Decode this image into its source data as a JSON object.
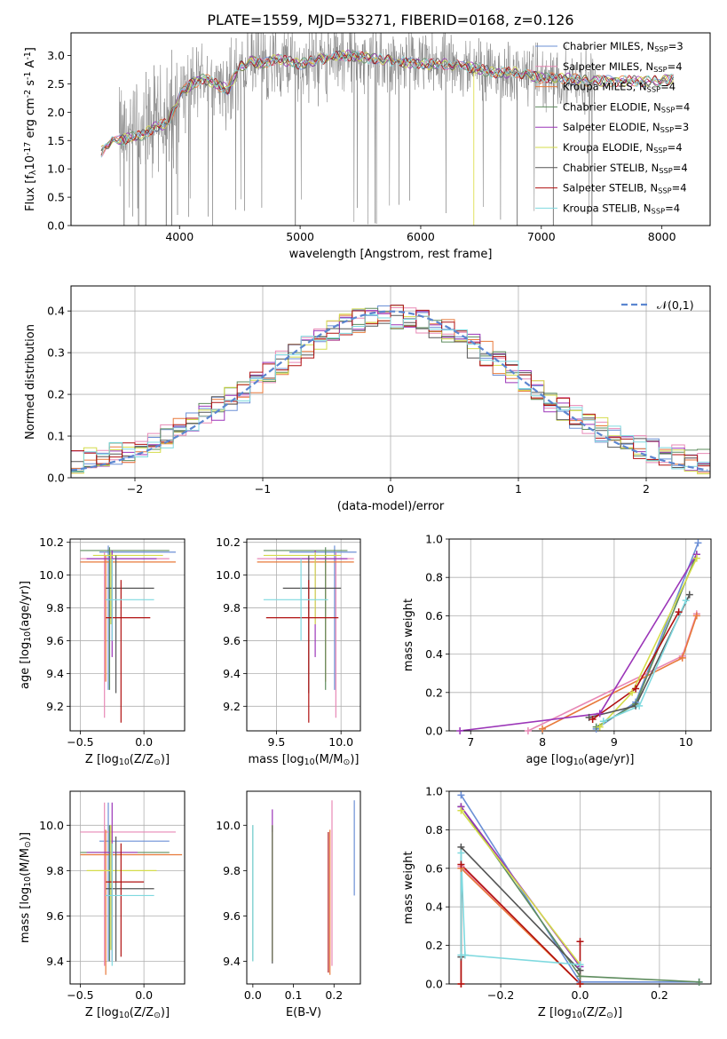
{
  "figure": {
    "title": "PLATE=1559, MJD=53271, FIBERID=0168, z=0.126"
  },
  "legend": [
    {
      "label": "Chabrier MILES, N$_{SSP}$=3",
      "color": "#6b8fd6"
    },
    {
      "label": "Salpeter MILES, N$_{SSP}$=4",
      "color": "#e889b6"
    },
    {
      "label": "Kroupa MILES, N$_{SSP}$=4",
      "color": "#e8793a"
    },
    {
      "label": "Chabrier ELODIE, N$_{SSP}$=4",
      "color": "#5e8c5e"
    },
    {
      "label": "Salpeter ELODIE, N$_{SSP}$=3",
      "color": "#9b35b8"
    },
    {
      "label": "Kroupa ELODIE, N$_{SSP}$=4",
      "color": "#d4dc4a"
    },
    {
      "label": "Chabrier STELIB, N$_{SSP}$=4",
      "color": "#555555"
    },
    {
      "label": "Salpeter STELIB, N$_{SSP}$=4",
      "color": "#b01010"
    },
    {
      "label": "Kroupa STELIB, N$_{SSP}$=4",
      "color": "#7fd9df"
    }
  ],
  "chart_data": [
    {
      "id": "spectrum",
      "type": "line",
      "xlabel": "wavelength [Angstrom, rest frame]",
      "ylabel": "Flux [f$_\\lambda$10$^{-17}$ erg cm$^{-2}$ s$^{-1}$ A$^{-1}$]",
      "xlim": [
        3100,
        8400
      ],
      "ylim": [
        0,
        3.4
      ],
      "xticks": [
        4000,
        5000,
        6000,
        7000,
        8000
      ],
      "yticks": [
        0.0,
        0.5,
        1.0,
        1.5,
        2.0,
        2.5,
        3.0
      ],
      "grid": false,
      "legend_position": "top-right",
      "data_color": "#808080",
      "model_x": [
        3350,
        3400,
        3500,
        3600,
        3700,
        3800,
        3900,
        4000,
        4100,
        4200,
        4300,
        4400,
        4500,
        4600,
        4700,
        4800,
        4900,
        5000,
        5200,
        5400,
        5600,
        5800,
        6000,
        6200,
        6400,
        6600,
        6800,
        7000,
        7200,
        7400,
        7600,
        7800,
        8000,
        8100
      ],
      "model_y": [
        1.3,
        1.45,
        1.5,
        1.55,
        1.6,
        1.75,
        1.8,
        2.3,
        2.5,
        2.6,
        2.5,
        2.4,
        2.8,
        2.9,
        2.85,
        2.95,
        2.9,
        2.85,
        2.95,
        3.0,
        2.95,
        2.9,
        2.85,
        2.85,
        2.8,
        2.7,
        2.7,
        2.6,
        2.6,
        2.55,
        2.55,
        2.55,
        2.55,
        2.6
      ]
    },
    {
      "id": "residuals",
      "type": "histogram",
      "xlabel": "(data-model)/error",
      "ylabel": "Normed distribution",
      "xlim": [
        -2.5,
        2.5
      ],
      "ylim": [
        0,
        0.46
      ],
      "xticks": [
        -2,
        -1,
        0,
        1,
        2
      ],
      "yticks": [
        0.0,
        0.1,
        0.2,
        0.3,
        0.4
      ],
      "grid": true,
      "legend_position": "top-right",
      "curve_label": "$\\mathcal{N}(0,1)$",
      "curve_color": "#5b86d0",
      "bin_width": 0.1
    },
    {
      "id": "age-vs-Z",
      "type": "scatter",
      "xlabel": "Z [log$_{10}$(Z/Z$_\\odot$)]",
      "ylabel": "age  [log$_{10}$(age/yr)]",
      "xlim": [
        -0.58,
        0.32
      ],
      "ylim": [
        9.05,
        10.22
      ],
      "xticks": [
        -0.5,
        0.0
      ],
      "yticks": [
        9.2,
        9.4,
        9.6,
        9.8,
        10.0,
        10.2
      ],
      "grid": true,
      "points": [
        {
          "c": 0,
          "x": -0.28,
          "xe": [
            -0.35,
            0.25
          ],
          "y": 10.14,
          "ye": [
            9.3,
            10.18
          ]
        },
        {
          "c": 1,
          "x": -0.31,
          "xe": [
            -0.5,
            0.2
          ],
          "y": 10.1,
          "ye": [
            9.13,
            10.14
          ]
        },
        {
          "c": 2,
          "x": -0.3,
          "xe": [
            -0.5,
            0.25
          ],
          "y": 10.08,
          "ye": [
            9.35,
            10.12
          ]
        },
        {
          "c": 3,
          "x": -0.27,
          "xe": [
            -0.5,
            0.2
          ],
          "y": 10.15,
          "ye": [
            9.3,
            10.17
          ]
        },
        {
          "c": 4,
          "x": -0.25,
          "xe": [
            -0.45,
            0.1
          ],
          "y": 10.1,
          "ye": [
            9.5,
            10.15
          ]
        },
        {
          "c": 5,
          "x": -0.26,
          "xe": [
            -0.4,
            0.15
          ],
          "y": 10.12,
          "ye": [
            9.7,
            10.14
          ]
        },
        {
          "c": 6,
          "x": -0.22,
          "xe": [
            -0.3,
            0.08
          ],
          "y": 9.92,
          "ye": [
            9.28,
            10.12
          ]
        },
        {
          "c": 7,
          "x": -0.18,
          "xe": [
            -0.3,
            0.05
          ],
          "y": 9.74,
          "ye": [
            9.1,
            9.97
          ]
        },
        {
          "c": 8,
          "x": -0.25,
          "xe": [
            -0.3,
            0.08
          ],
          "y": 9.85,
          "ye": [
            9.6,
            10.1
          ]
        }
      ]
    },
    {
      "id": "age-vs-mass",
      "type": "scatter",
      "xlabel": "mass [log$_{10}$(M/M$_\\odot$)]",
      "ylabel": "",
      "xlim": [
        9.27,
        10.15
      ],
      "ylim": [
        9.05,
        10.22
      ],
      "xticks": [
        9.5,
        10.0
      ],
      "yticks": [
        9.2,
        9.4,
        9.6,
        9.8,
        10.0,
        10.2
      ],
      "grid": true,
      "points": [
        {
          "c": 0,
          "x": 9.95,
          "xe": [
            9.6,
            10.12
          ],
          "y": 10.14,
          "ye": [
            9.3,
            10.18
          ]
        },
        {
          "c": 1,
          "x": 9.96,
          "xe": [
            9.35,
            10.1
          ],
          "y": 10.1,
          "ye": [
            9.13,
            10.14
          ]
        },
        {
          "c": 2,
          "x": 9.88,
          "xe": [
            9.35,
            10.1
          ],
          "y": 10.08,
          "ye": [
            9.35,
            10.12
          ]
        },
        {
          "c": 3,
          "x": 9.88,
          "xe": [
            9.4,
            10.05
          ],
          "y": 10.15,
          "ye": [
            9.3,
            10.17
          ]
        },
        {
          "c": 4,
          "x": 9.8,
          "xe": [
            9.5,
            10.05
          ],
          "y": 10.1,
          "ye": [
            9.5,
            10.15
          ]
        },
        {
          "c": 5,
          "x": 9.8,
          "xe": [
            9.4,
            10.0
          ],
          "y": 10.12,
          "ye": [
            9.7,
            10.14
          ]
        },
        {
          "c": 6,
          "x": 9.75,
          "xe": [
            9.55,
            10.0
          ],
          "y": 9.92,
          "ye": [
            9.28,
            10.12
          ]
        },
        {
          "c": 7,
          "x": 9.75,
          "xe": [
            9.42,
            9.98
          ],
          "y": 9.74,
          "ye": [
            9.1,
            9.97
          ]
        },
        {
          "c": 8,
          "x": 9.69,
          "xe": [
            9.4,
            9.9
          ],
          "y": 9.85,
          "ye": [
            9.6,
            10.1
          ]
        }
      ]
    },
    {
      "id": "mass-weight-vs-age",
      "type": "line",
      "xlabel": "age  [log$_{10}$(age/yr)]",
      "ylabel": "mass weight",
      "xlim": [
        6.7,
        10.35
      ],
      "ylim": [
        0,
        1.0
      ],
      "xticks": [
        7,
        8,
        9,
        10
      ],
      "yticks": [
        0.0,
        0.2,
        0.4,
        0.6,
        0.8,
        1.0
      ],
      "grid": true,
      "series": [
        {
          "c": 0,
          "x": [
            8.75,
            9.3,
            10.17
          ],
          "y": [
            0.01,
            0.15,
            0.98
          ]
        },
        {
          "c": 1,
          "x": [
            7.8,
            9.95,
            10.15
          ],
          "y": [
            0.0,
            0.39,
            0.61
          ]
        },
        {
          "c": 2,
          "x": [
            8.0,
            9.95,
            10.15
          ],
          "y": [
            0.01,
            0.38,
            0.6
          ]
        },
        {
          "c": 3,
          "x": [
            8.75,
            9.3,
            10.15
          ],
          "y": [
            0.02,
            0.14,
            0.92
          ]
        },
        {
          "c": 4,
          "x": [
            6.85,
            8.8,
            10.15
          ],
          "y": [
            0.0,
            0.09,
            0.92
          ]
        },
        {
          "c": 5,
          "x": [
            8.8,
            9.25,
            10.15
          ],
          "y": [
            0.02,
            0.2,
            0.9
          ]
        },
        {
          "c": 6,
          "x": [
            8.65,
            9.3,
            10.05
          ],
          "y": [
            0.07,
            0.13,
            0.71
          ]
        },
        {
          "c": 7,
          "x": [
            8.7,
            9.3,
            9.9
          ],
          "y": [
            0.06,
            0.22,
            0.62
          ]
        },
        {
          "c": 8,
          "x": [
            8.85,
            9.35,
            10.0
          ],
          "y": [
            0.05,
            0.13,
            0.68
          ]
        }
      ]
    },
    {
      "id": "mass-vs-Z",
      "type": "scatter",
      "xlabel": "Z [log$_{10}$(Z/Z$_\\odot$)]",
      "ylabel": "mass [log$_{10}$(M/M$_\\odot$)]",
      "xlim": [
        -0.58,
        0.32
      ],
      "ylim": [
        9.3,
        10.15
      ],
      "xticks": [
        -0.5,
        0.0
      ],
      "yticks": [
        9.4,
        9.6,
        9.8,
        10.0
      ],
      "grid": true,
      "points": [
        {
          "c": 0,
          "x": -0.28,
          "xe": [
            -0.35,
            0.2
          ],
          "y": 9.93,
          "ye": [
            9.4,
            10.1
          ]
        },
        {
          "c": 1,
          "x": -0.31,
          "xe": [
            -0.5,
            0.25
          ],
          "y": 9.97,
          "ye": [
            9.38,
            10.1
          ]
        },
        {
          "c": 2,
          "x": -0.3,
          "xe": [
            -0.5,
            0.3
          ],
          "y": 9.87,
          "ye": [
            9.34,
            9.98
          ]
        },
        {
          "c": 3,
          "x": -0.27,
          "xe": [
            -0.5,
            0.2
          ],
          "y": 9.88,
          "ye": [
            9.4,
            10.0
          ]
        },
        {
          "c": 4,
          "x": -0.25,
          "xe": [
            -0.45,
            -0.05
          ],
          "y": 9.88,
          "ye": [
            9.4,
            10.1
          ]
        },
        {
          "c": 5,
          "x": -0.26,
          "xe": [
            -0.45,
            0.1
          ],
          "y": 9.8,
          "ye": [
            9.45,
            10.0
          ]
        },
        {
          "c": 6,
          "x": -0.22,
          "xe": [
            -0.3,
            0.08
          ],
          "y": 9.72,
          "ye": [
            9.4,
            9.95
          ]
        },
        {
          "c": 7,
          "x": -0.18,
          "xe": [
            -0.3,
            0.0
          ],
          "y": 9.75,
          "ye": [
            9.42,
            9.92
          ]
        },
        {
          "c": 8,
          "x": -0.25,
          "xe": [
            -0.3,
            0.08
          ],
          "y": 9.69,
          "ye": [
            9.38,
            9.92
          ]
        }
      ]
    },
    {
      "id": "mass-vs-EBV",
      "type": "scatter",
      "xlabel": "E(B-V)",
      "ylabel": "",
      "xlim": [
        -0.015,
        0.265
      ],
      "ylim": [
        9.3,
        10.15
      ],
      "xticks": [
        0.0,
        0.1,
        0.2
      ],
      "yticks": [
        9.4,
        9.6,
        9.8,
        10.0
      ],
      "grid": false,
      "points": [
        {
          "c": 0,
          "x": 0.25,
          "y": 9.9,
          "ye": [
            9.69,
            10.11
          ]
        },
        {
          "c": 1,
          "x": 0.195,
          "y": 9.85,
          "ye": [
            9.38,
            10.11
          ]
        },
        {
          "c": 2,
          "x": 0.19,
          "y": 9.66,
          "ye": [
            9.34,
            9.98
          ]
        },
        {
          "c": 3,
          "x": 0.0,
          "y": 9.7,
          "ye": [
            9.4,
            10.0
          ]
        },
        {
          "c": 4,
          "x": 0.048,
          "y": 10.02,
          "ye": [
            9.97,
            10.07
          ]
        },
        {
          "c": 5,
          "x": 0.048,
          "y": 9.7,
          "ye": [
            9.4,
            10.0
          ]
        },
        {
          "c": 6,
          "x": 0.048,
          "y": 9.7,
          "ye": [
            9.39,
            10.0
          ]
        },
        {
          "c": 7,
          "x": 0.186,
          "y": 9.66,
          "ye": [
            9.35,
            9.97
          ]
        },
        {
          "c": 8,
          "x": 0.0,
          "y": 9.7,
          "ye": [
            9.4,
            10.0
          ]
        }
      ]
    },
    {
      "id": "mass-weight-vs-Z",
      "type": "line",
      "xlabel": "Z [log$_{10}$(Z/Z$_\\odot$)]",
      "ylabel": "mass weight",
      "xlim": [
        -0.33,
        0.33
      ],
      "ylim": [
        0,
        1.0
      ],
      "xticks": [
        -0.2,
        0.0,
        0.2
      ],
      "yticks": [
        0.0,
        0.2,
        0.4,
        0.6,
        0.8,
        1.0
      ],
      "grid": true,
      "series": [
        {
          "c": 0,
          "x": [
            -0.3,
            0.0,
            0.3
          ],
          "y": [
            0.98,
            0.01,
            0.01
          ]
        },
        {
          "c": 1,
          "x": [
            -0.3,
            -0.3,
            0.0
          ],
          "y": [
            0.0,
            0.61,
            0.0
          ]
        },
        {
          "c": 2,
          "x": [
            -0.3,
            -0.3,
            0.0
          ],
          "y": [
            0.0,
            0.6,
            0.0
          ]
        },
        {
          "c": 3,
          "x": [
            -0.3,
            0.0,
            0.3
          ],
          "y": [
            0.92,
            0.04,
            0.01
          ]
        },
        {
          "c": 4,
          "x": [
            -0.3,
            0.0,
            0.0
          ],
          "y": [
            0.92,
            0.09,
            0.0
          ]
        },
        {
          "c": 5,
          "x": [
            -0.3,
            0.0,
            0.0
          ],
          "y": [
            0.9,
            0.1,
            0.0
          ]
        },
        {
          "c": 6,
          "x": [
            -0.3,
            -0.3,
            0.0
          ],
          "y": [
            0.14,
            0.71,
            0.07
          ]
        },
        {
          "c": 7,
          "x": [
            -0.3,
            -0.3,
            0.0,
            0.0
          ],
          "y": [
            0.0,
            0.62,
            0.0,
            0.22
          ]
        },
        {
          "c": 8,
          "x": [
            -0.3,
            -0.3,
            -0.29,
            0.0
          ],
          "y": [
            0.15,
            0.68,
            0.15,
            0.1
          ]
        }
      ]
    }
  ]
}
